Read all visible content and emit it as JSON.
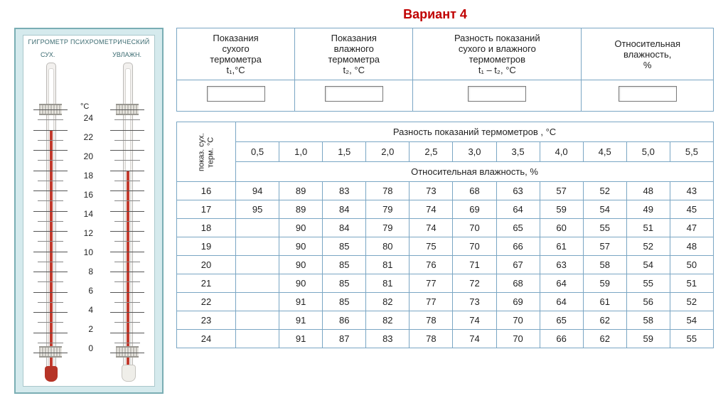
{
  "title": "Вариант 4",
  "hygrometer": {
    "caption": "ГИГРОМЕТР ПСИХРОМЕТРИЧЕСКИЙ",
    "left_label": "СУХ.",
    "right_label": "УВЛАЖН.",
    "unit": "°C",
    "scale_labels": [
      "24",
      "22",
      "20",
      "18",
      "16",
      "14",
      "12",
      "10",
      "8",
      "6",
      "4",
      "2",
      "0"
    ],
    "scale_max": 24,
    "scale_min": 0,
    "dry_reading": 22,
    "wet_reading": 18,
    "colors": {
      "frame_bg": "#d5eaed",
      "frame_border": "#7aaeb4",
      "mercury": "#c23b2e",
      "bulb_dry": "#b63427",
      "bulb_wet": "#efeee9"
    }
  },
  "input_table": {
    "headers": {
      "h1_line1": "Показания",
      "h1_line2": "сухого",
      "h1_line3": "термометра",
      "h1_line4": "t₁,°C",
      "h2_line1": "Показания",
      "h2_line2": "влажного",
      "h2_line3": "термометра",
      "h2_line4": "t₂, °C",
      "h3_line1": "Разность показаний",
      "h3_line2": "сухого и влажного",
      "h3_line3": "термометров",
      "h3_line4": "t₁ – t₂, °C",
      "h4_line1": "Относительная",
      "h4_line2": "влажность,",
      "h4_line3": "%"
    }
  },
  "psy_table": {
    "row_header_l1": "показ. сух.",
    "row_header_l2": "терм. °C",
    "diff_caption": "Разность показаний термометров , °C",
    "diff_values": [
      "0,5",
      "1,0",
      "1,5",
      "2,0",
      "2,5",
      "3,0",
      "3,5",
      "4,0",
      "4,5",
      "5,0",
      "5,5"
    ],
    "humidity_caption": "Относительная влажность, %",
    "temps": [
      "16",
      "17",
      "18",
      "19",
      "20",
      "21",
      "22",
      "23",
      "24"
    ],
    "rows": [
      [
        "94",
        "89",
        "83",
        "78",
        "73",
        "68",
        "63",
        "57",
        "52",
        "48",
        "43"
      ],
      [
        "95",
        "89",
        "84",
        "79",
        "74",
        "69",
        "64",
        "59",
        "54",
        "49",
        "45"
      ],
      [
        "",
        "90",
        "84",
        "79",
        "74",
        "70",
        "65",
        "60",
        "55",
        "51",
        "47"
      ],
      [
        "",
        "90",
        "85",
        "80",
        "75",
        "70",
        "66",
        "61",
        "57",
        "52",
        "48"
      ],
      [
        "",
        "90",
        "85",
        "81",
        "76",
        "71",
        "67",
        "63",
        "58",
        "54",
        "50"
      ],
      [
        "",
        "90",
        "85",
        "81",
        "77",
        "72",
        "68",
        "64",
        "59",
        "55",
        "51"
      ],
      [
        "",
        "91",
        "85",
        "82",
        "77",
        "73",
        "69",
        "64",
        "61",
        "56",
        "52"
      ],
      [
        "",
        "91",
        "86",
        "82",
        "78",
        "74",
        "70",
        "65",
        "62",
        "58",
        "54"
      ],
      [
        "",
        "91",
        "87",
        "83",
        "78",
        "74",
        "70",
        "66",
        "62",
        "59",
        "55"
      ]
    ],
    "border_color": "#7aa6c4"
  }
}
